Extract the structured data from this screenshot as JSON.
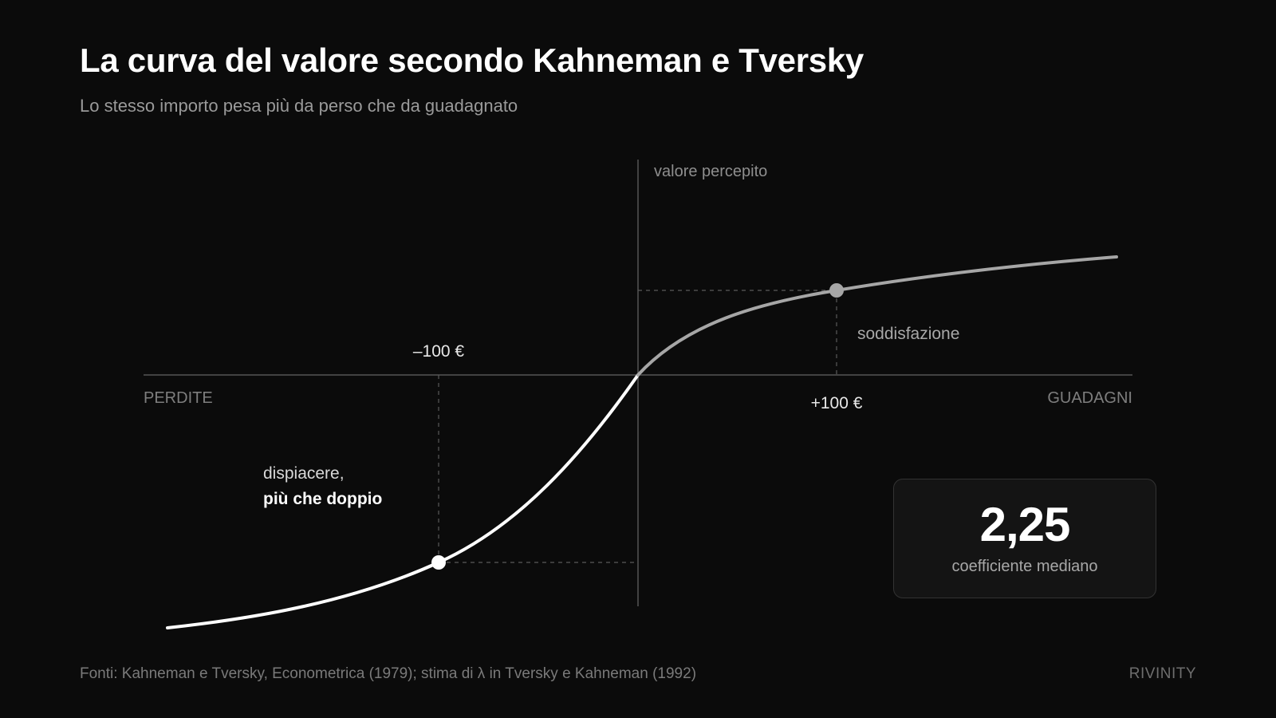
{
  "header": {
    "title": "La curva del valore secondo Kahneman e Tversky",
    "subtitle": "Lo stesso importo pesa più da perso che da guadagnato"
  },
  "diagram": {
    "y_axis_label": "valore percepito",
    "x_axis_left_label": "PERDITE",
    "x_axis_right_label": "GUADAGNI",
    "loss_marker_label": "–100 €",
    "gain_marker_label": "+100 €",
    "gain_annotation": "soddisfazione",
    "loss_annotation_line1": "dispiacere,",
    "loss_annotation_line2": "più che doppio",
    "loss_curve_color": "#ffffff",
    "gain_curve_color": "#a6a6a6"
  },
  "stat": {
    "value": "2,25",
    "label": "coefficiente mediano"
  },
  "footer": {
    "source": "Fonti: Kahneman e Tversky, Econometrica (1979); stima di λ in Tversky e Kahneman (1992)",
    "brand": "RIVINITY"
  }
}
